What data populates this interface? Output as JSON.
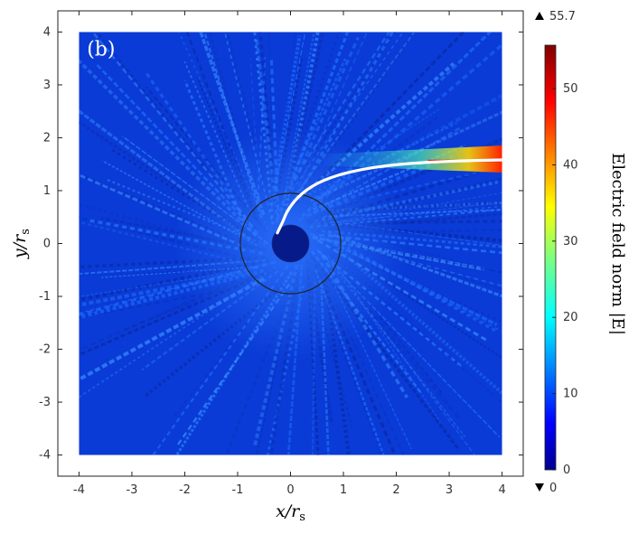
{
  "chart_data": {
    "type": "heatmap",
    "panel_label": "(b)",
    "xlabel": "x/r",
    "xlabel_sub": "s",
    "ylabel": "y/r",
    "ylabel_sub": "s",
    "xlim": [
      -4.4,
      4.4
    ],
    "ylim": [
      -4.4,
      4.4
    ],
    "field_extent": {
      "x": [
        -4,
        4
      ],
      "y": [
        -4,
        4
      ]
    },
    "x_ticks": [
      -4,
      -3,
      -2,
      -1,
      0,
      1,
      2,
      3,
      4
    ],
    "y_ticks": [
      -4,
      -3,
      -2,
      -1,
      0,
      1,
      2,
      3,
      4
    ],
    "colorbar": {
      "title": "Electric field norm |E|",
      "min": 0,
      "max": 55.7,
      "ticks": [
        0,
        10,
        20,
        30,
        40,
        50
      ],
      "max_label": "55.7",
      "min_label": "0",
      "colormap": "jet"
    },
    "features": {
      "black_hole_radius": 0.35,
      "photon_sphere_radius": 0.95,
      "beam_y": 1.58,
      "beam_peak_value": 55.7,
      "background_value": 6,
      "ray_trajectory": [
        [
          4.0,
          1.58
        ],
        [
          3.0,
          1.56
        ],
        [
          2.0,
          1.5
        ],
        [
          1.2,
          1.38
        ],
        [
          0.6,
          1.2
        ],
        [
          0.2,
          0.95
        ],
        [
          -0.05,
          0.65
        ],
        [
          -0.15,
          0.4
        ],
        [
          -0.25,
          0.2
        ]
      ]
    }
  },
  "colors": {
    "field_background": "#0a3bd6",
    "black_hole": "#061a8a",
    "circle_stroke": "#222222",
    "ray": "#ffffff",
    "frame": "#222222"
  }
}
